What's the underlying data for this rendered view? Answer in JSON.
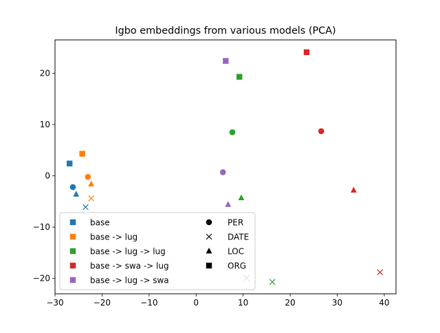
{
  "chart_data": {
    "type": "scatter",
    "title": "Igbo embeddings from various models (PCA)",
    "xlabel": "",
    "ylabel": "",
    "xlim": [
      -30,
      42.5
    ],
    "ylim": [
      -23,
      26.5
    ],
    "xticks": [
      -30,
      -20,
      -10,
      0,
      10,
      20,
      30,
      40
    ],
    "yticks": [
      -20,
      -10,
      0,
      10,
      20
    ],
    "tick_labels": {
      "x": [
        "−30",
        "−20",
        "−10",
        "0",
        "10",
        "20",
        "30",
        "40"
      ],
      "y": [
        "−20",
        "−10",
        "0",
        "10",
        "20"
      ]
    },
    "grid": false,
    "legend_position": "lower-left",
    "series": [
      {
        "name": "base",
        "color": "#1f77b4",
        "points": [
          {
            "label": "PER",
            "marker": "circle",
            "x": -26.2,
            "y": -2.2
          },
          {
            "label": "DATE",
            "marker": "x",
            "x": -23.5,
            "y": -6.1
          },
          {
            "label": "LOC",
            "marker": "triangle",
            "x": -25.5,
            "y": -3.6
          },
          {
            "label": "ORG",
            "marker": "square",
            "x": -26.9,
            "y": 2.4
          }
        ]
      },
      {
        "name": "base -> lug",
        "color": "#ff7f0e",
        "points": [
          {
            "label": "PER",
            "marker": "circle",
            "x": -23.0,
            "y": -0.2
          },
          {
            "label": "DATE",
            "marker": "x",
            "x": -22.3,
            "y": -4.4
          },
          {
            "label": "LOC",
            "marker": "triangle",
            "x": -22.3,
            "y": -1.6
          },
          {
            "label": "ORG",
            "marker": "square",
            "x": -24.2,
            "y": 4.3
          }
        ]
      },
      {
        "name": "base -> lug -> lug",
        "color": "#2ca02c",
        "points": [
          {
            "label": "PER",
            "marker": "circle",
            "x": 7.7,
            "y": 8.5
          },
          {
            "label": "DATE",
            "marker": "x",
            "x": 16.2,
            "y": -20.7
          },
          {
            "label": "LOC",
            "marker": "triangle",
            "x": 9.6,
            "y": -4.3
          },
          {
            "label": "ORG",
            "marker": "square",
            "x": 9.2,
            "y": 19.3
          }
        ]
      },
      {
        "name": "base -> swa -> lug",
        "color": "#d62728",
        "points": [
          {
            "label": "PER",
            "marker": "circle",
            "x": 26.6,
            "y": 8.7
          },
          {
            "label": "DATE",
            "marker": "x",
            "x": 39.1,
            "y": -18.8
          },
          {
            "label": "LOC",
            "marker": "triangle",
            "x": 33.5,
            "y": -2.8
          },
          {
            "label": "ORG",
            "marker": "square",
            "x": 23.5,
            "y": 24.1
          }
        ]
      },
      {
        "name": "base -> lug -> swa",
        "color": "#9467bd",
        "points": [
          {
            "label": "PER",
            "marker": "circle",
            "x": 5.7,
            "y": 0.7
          },
          {
            "label": "DATE",
            "marker": "x",
            "x": 10.7,
            "y": -19.9
          },
          {
            "label": "LOC",
            "marker": "triangle",
            "x": 6.8,
            "y": -5.6
          },
          {
            "label": "ORG",
            "marker": "square",
            "x": 6.3,
            "y": 22.4
          }
        ]
      }
    ],
    "marker_legend": [
      {
        "label": "PER",
        "marker": "circle"
      },
      {
        "label": "DATE",
        "marker": "x"
      },
      {
        "label": "LOC",
        "marker": "triangle"
      },
      {
        "label": "ORG",
        "marker": "square"
      }
    ]
  }
}
